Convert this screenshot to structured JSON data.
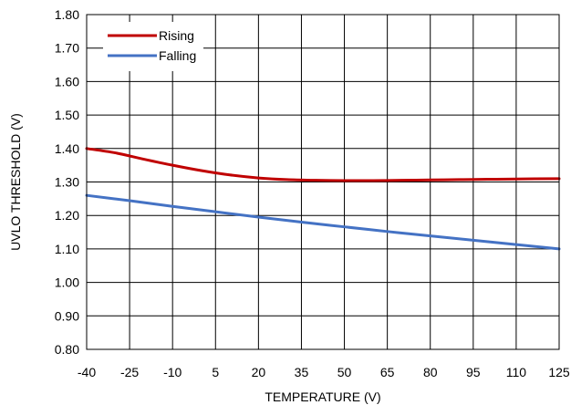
{
  "chart_data": {
    "type": "line",
    "title": "",
    "xlabel": "TEMPERATURE (V)",
    "ylabel": "UVLO THRESHOLD (V)",
    "xlim": [
      -40,
      125
    ],
    "ylim": [
      0.8,
      1.8
    ],
    "x_ticks": [
      -40,
      -25,
      -10,
      5,
      20,
      35,
      50,
      65,
      80,
      95,
      110,
      125
    ],
    "x_tick_labels": [
      "-40",
      "-25",
      "-10",
      "5",
      "20",
      "35",
      "50",
      "65",
      "80",
      "95",
      "110",
      "125"
    ],
    "y_ticks": [
      0.8,
      0.9,
      1.0,
      1.1,
      1.2,
      1.3,
      1.4,
      1.5,
      1.6,
      1.7,
      1.8
    ],
    "y_tick_labels": [
      "0.80",
      "0.90",
      "1.00",
      "1.10",
      "1.20",
      "1.30",
      "1.40",
      "1.50",
      "1.60",
      "1.70",
      "1.80"
    ],
    "grid": true,
    "legend_position": "top-left",
    "series": [
      {
        "name": "Rising",
        "color": "#C00000",
        "x": [
          -40,
          -30,
          -20,
          -10,
          0,
          10,
          20,
          30,
          40,
          50,
          60,
          70,
          80,
          90,
          100,
          110,
          125
        ],
        "y": [
          1.4,
          1.387,
          1.368,
          1.35,
          1.334,
          1.321,
          1.312,
          1.307,
          1.305,
          1.304,
          1.304,
          1.305,
          1.306,
          1.307,
          1.308,
          1.309,
          1.31
        ]
      },
      {
        "name": "Falling",
        "color": "#4472C4",
        "x": [
          -40,
          -25,
          -10,
          5,
          20,
          35,
          50,
          65,
          80,
          95,
          110,
          125
        ],
        "y": [
          1.26,
          1.244,
          1.227,
          1.211,
          1.195,
          1.18,
          1.166,
          1.152,
          1.139,
          1.126,
          1.113,
          1.1
        ]
      }
    ]
  }
}
